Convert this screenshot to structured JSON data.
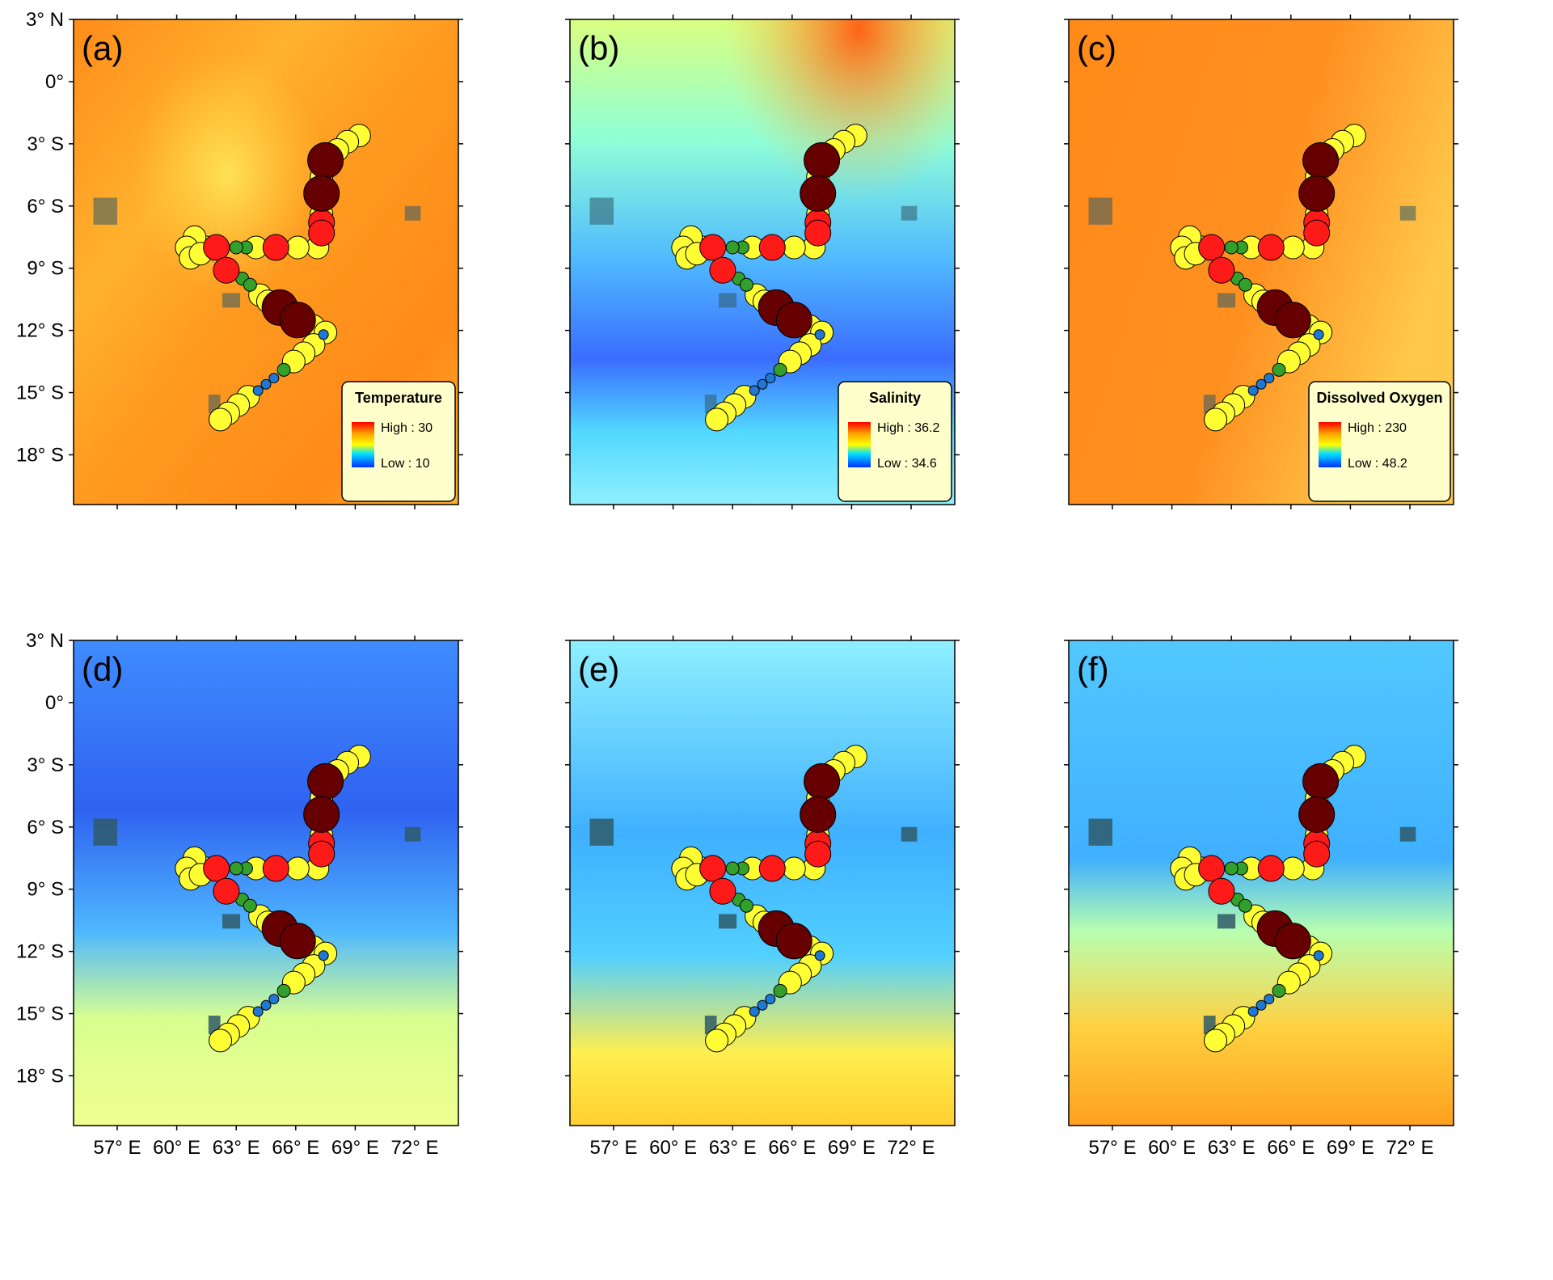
{
  "figure": {
    "lat_ticks": [
      "3° N",
      "0°",
      "3° S",
      "6° S",
      "9° S",
      "12° S",
      "15° S",
      "18° S"
    ],
    "lon_ticks": [
      "57° E",
      "60° E",
      "63° E",
      "66° E",
      "69° E",
      "72° E"
    ],
    "lon_range": [
      54.8,
      74.2
    ],
    "lat_range": [
      -20.4,
      3.0
    ],
    "tick_lats": [
      3,
      0,
      -3,
      -6,
      -9,
      -12,
      -15,
      -18
    ],
    "tick_lons": [
      57,
      60,
      63,
      66,
      69,
      72
    ]
  },
  "panels": [
    {
      "label": "(a)",
      "theme": "warm",
      "legend": {
        "title": "Temperature",
        "high": "High : 30",
        "low": "Low : 10",
        "palette": "rainbow"
      }
    },
    {
      "label": "(b)",
      "theme": "salinity",
      "legend": {
        "title": "Salinity",
        "high": "High : 36.2",
        "low": "Low : 34.6",
        "palette": "rainbow"
      }
    },
    {
      "label": "(c)",
      "theme": "oxygen",
      "legend": {
        "title": "Dissolved Oxygen",
        "high": "High : 230",
        "low": "Low : 48.2",
        "palette": "rainbow"
      }
    },
    {
      "label": "(d)",
      "theme": "cool",
      "legend": null
    },
    {
      "label": "(e)",
      "theme": "aqua",
      "legend": null
    },
    {
      "label": "(f)",
      "theme": "blend",
      "legend": null
    }
  ],
  "stations": [
    {
      "lon": 69.2,
      "lat": -2.6,
      "color": "#ffff33",
      "size": "m"
    },
    {
      "lon": 68.6,
      "lat": -2.9,
      "color": "#ffff33",
      "size": "m"
    },
    {
      "lon": 68.1,
      "lat": -3.3,
      "color": "#ffff33",
      "size": "m"
    },
    {
      "lon": 67.5,
      "lat": -3.8,
      "color": "#660000",
      "size": "xl"
    },
    {
      "lon": 67.3,
      "lat": -4.6,
      "color": "#ffff33",
      "size": "m"
    },
    {
      "lon": 67.3,
      "lat": -5.4,
      "color": "#660000",
      "size": "xl"
    },
    {
      "lon": 67.3,
      "lat": -6.4,
      "color": "#ffff33",
      "size": "m"
    },
    {
      "lon": 67.3,
      "lat": -6.8,
      "color": "#ff1a1a",
      "size": "l"
    },
    {
      "lon": 67.3,
      "lat": -7.3,
      "color": "#ff1a1a",
      "size": "l"
    },
    {
      "lon": 67.1,
      "lat": -8.0,
      "color": "#ffff33",
      "size": "m"
    },
    {
      "lon": 66.1,
      "lat": -8.0,
      "color": "#ffff33",
      "size": "m"
    },
    {
      "lon": 65.0,
      "lat": -8.0,
      "color": "#ff1a1a",
      "size": "l"
    },
    {
      "lon": 64.0,
      "lat": -8.0,
      "color": "#ffff33",
      "size": "m"
    },
    {
      "lon": 63.5,
      "lat": -8.0,
      "color": "#33a02c",
      "size": "s"
    },
    {
      "lon": 63.0,
      "lat": -8.0,
      "color": "#33a02c",
      "size": "s"
    },
    {
      "lon": 62.0,
      "lat": -8.0,
      "color": "#ff1a1a",
      "size": "l"
    },
    {
      "lon": 61.5,
      "lat": -8.0,
      "color": "#ffff33",
      "size": "m"
    },
    {
      "lon": 60.9,
      "lat": -7.5,
      "color": "#ffff33",
      "size": "m"
    },
    {
      "lon": 60.5,
      "lat": -8.0,
      "color": "#ffff33",
      "size": "m"
    },
    {
      "lon": 60.7,
      "lat": -8.5,
      "color": "#ffff33",
      "size": "m"
    },
    {
      "lon": 61.2,
      "lat": -8.3,
      "color": "#ffff33",
      "size": "m"
    },
    {
      "lon": 62.5,
      "lat": -9.1,
      "color": "#ff1a1a",
      "size": "l"
    },
    {
      "lon": 63.3,
      "lat": -9.5,
      "color": "#33a02c",
      "size": "s"
    },
    {
      "lon": 63.7,
      "lat": -9.8,
      "color": "#33a02c",
      "size": "s"
    },
    {
      "lon": 64.2,
      "lat": -10.3,
      "color": "#ffff33",
      "size": "m"
    },
    {
      "lon": 64.6,
      "lat": -10.6,
      "color": "#ffff33",
      "size": "m"
    },
    {
      "lon": 65.2,
      "lat": -10.9,
      "color": "#660000",
      "size": "xl"
    },
    {
      "lon": 66.1,
      "lat": -11.5,
      "color": "#660000",
      "size": "xl"
    },
    {
      "lon": 66.9,
      "lat": -11.8,
      "color": "#ffff33",
      "size": "m"
    },
    {
      "lon": 67.5,
      "lat": -12.1,
      "color": "#ffff33",
      "size": "m"
    },
    {
      "lon": 67.4,
      "lat": -12.2,
      "color": "#1f78d4",
      "size": "xs"
    },
    {
      "lon": 66.9,
      "lat": -12.7,
      "color": "#ffff33",
      "size": "m"
    },
    {
      "lon": 66.4,
      "lat": -13.1,
      "color": "#ffff33",
      "size": "m"
    },
    {
      "lon": 65.9,
      "lat": -13.5,
      "color": "#ffff33",
      "size": "m"
    },
    {
      "lon": 65.4,
      "lat": -13.9,
      "color": "#33a02c",
      "size": "s"
    },
    {
      "lon": 64.9,
      "lat": -14.3,
      "color": "#1f78d4",
      "size": "xs"
    },
    {
      "lon": 64.5,
      "lat": -14.6,
      "color": "#1f78d4",
      "size": "xs"
    },
    {
      "lon": 64.1,
      "lat": -14.9,
      "color": "#1f78d4",
      "size": "xs"
    },
    {
      "lon": 63.6,
      "lat": -15.2,
      "color": "#ffff33",
      "size": "m"
    },
    {
      "lon": 63.1,
      "lat": -15.6,
      "color": "#ffff33",
      "size": "m"
    },
    {
      "lon": 62.6,
      "lat": -16.0,
      "color": "#ffff33",
      "size": "m"
    },
    {
      "lon": 62.2,
      "lat": -16.3,
      "color": "#ffff33",
      "size": "m"
    }
  ]
}
